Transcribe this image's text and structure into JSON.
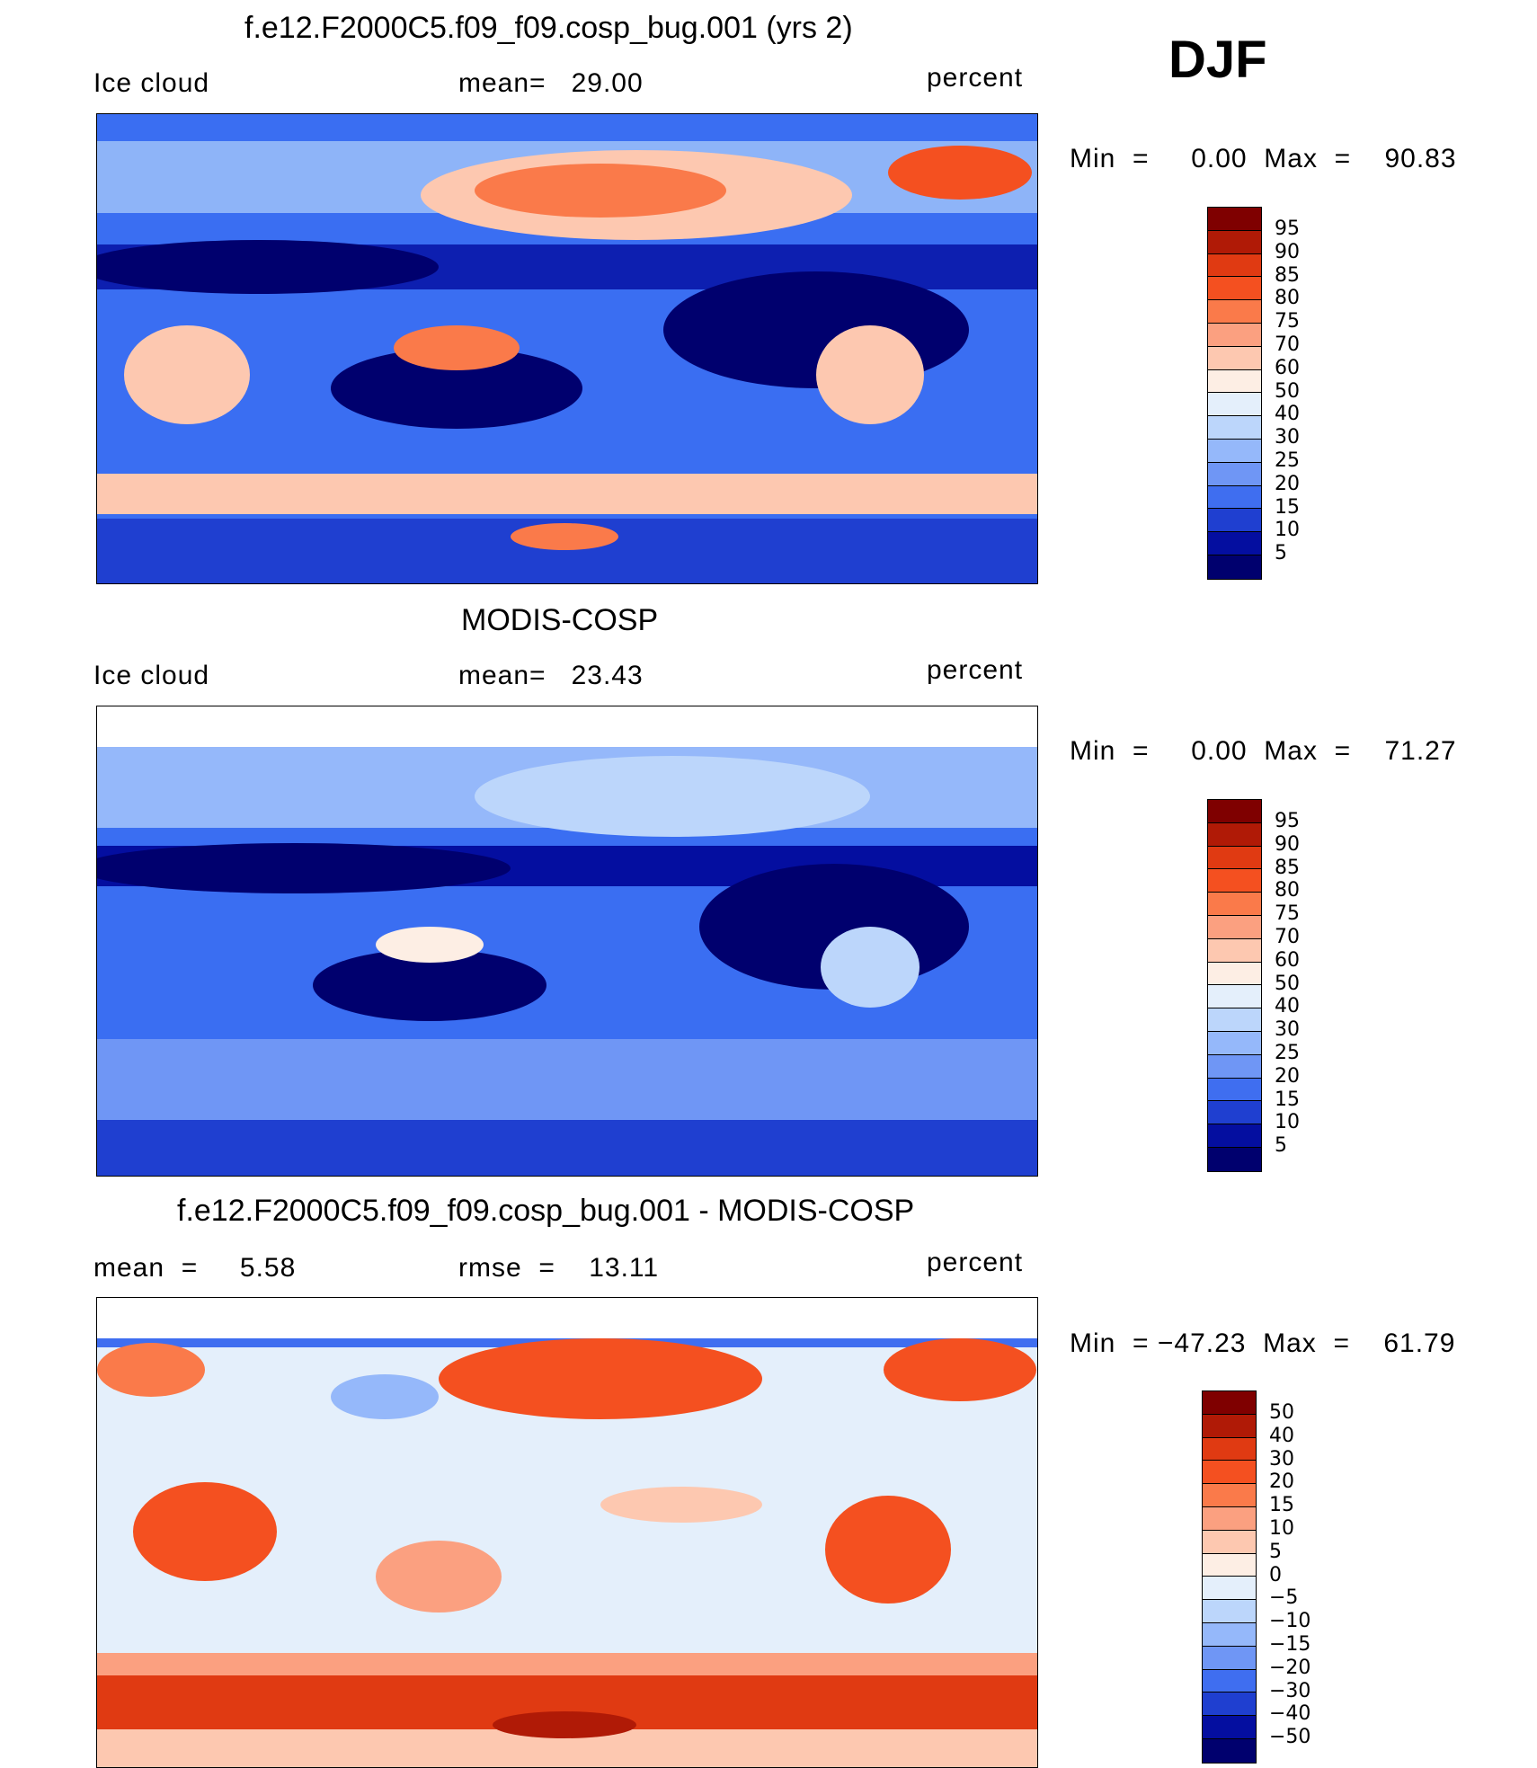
{
  "season": "DJF",
  "panels": [
    {
      "title": "f.e12.F2000C5.f09_f09.cosp_bug.001 (yrs 2)",
      "left_label": "Ice cloud",
      "center_label": "mean=   29.00",
      "right_label": "percent",
      "minmax": "Min  =     0.00  Max  =    90.83",
      "variable": "Ice cloud",
      "mean": 29.0,
      "min": 0.0,
      "max": 90.83,
      "colorbar_levels": [
        "95",
        "90",
        "85",
        "80",
        "75",
        "70",
        "60",
        "50",
        "40",
        "30",
        "25",
        "20",
        "15",
        "10",
        "5"
      ]
    },
    {
      "title": "MODIS-COSP",
      "left_label": "Ice cloud",
      "center_label": "mean=   23.43",
      "right_label": "percent",
      "minmax": "Min  =     0.00  Max  =    71.27",
      "variable": "Ice cloud",
      "mean": 23.43,
      "min": 0.0,
      "max": 71.27,
      "colorbar_levels": [
        "95",
        "90",
        "85",
        "80",
        "75",
        "70",
        "60",
        "50",
        "40",
        "30",
        "25",
        "20",
        "15",
        "10",
        "5"
      ]
    },
    {
      "title": "f.e12.F2000C5.f09_f09.cosp_bug.001 - MODIS-COSP",
      "left_label": "mean  =     5.58",
      "center_label": "rmse  =    13.11",
      "right_label": "percent",
      "minmax": "Min  = −47.23  Max  =    61.79",
      "mean": 5.58,
      "rmse": 13.11,
      "min": -47.23,
      "max": 61.79,
      "colorbar_levels": [
        "50",
        "40",
        "30",
        "20",
        "15",
        "10",
        "5",
        "0",
        "−5",
        "−10",
        "−15",
        "−20",
        "−30",
        "−40",
        "−50"
      ]
    }
  ],
  "colorbar_colors": [
    "#7f0000",
    "#b01a06",
    "#e03a12",
    "#f45020",
    "#fa7a4a",
    "#fba080",
    "#fdc8b0",
    "#fdeee4",
    "#e4effb",
    "#bcd6fb",
    "#95b8fa",
    "#6f96f5",
    "#3f6ef0",
    "#1f3fd0",
    "#040ea0",
    "#00006e"
  ]
}
